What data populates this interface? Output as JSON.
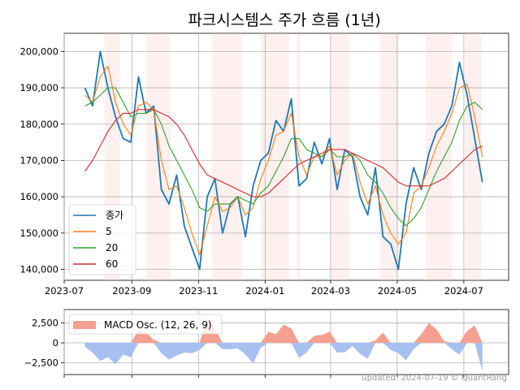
{
  "chart_data": [
    {
      "type": "line",
      "title": "파크시스템스 주가 흐름 (1년)",
      "xlabel": "",
      "ylabel": "",
      "ylim": [
        137000,
        205000
      ],
      "x_ticks": [
        "2023-07",
        "2023-09",
        "2023-11",
        "2024-01",
        "2024-03",
        "2024-05",
        "2024-07"
      ],
      "y_ticks": [
        "140,000",
        "150,000",
        "160,000",
        "170,000",
        "180,000",
        "190,000",
        "200,000"
      ],
      "y_tick_values": [
        140000,
        150000,
        160000,
        170000,
        180000,
        190000,
        200000
      ],
      "grid": true,
      "legend_position": "lower-left",
      "x": [
        "2023-07-20",
        "2023-07-27",
        "2023-08-03",
        "2023-08-10",
        "2023-08-17",
        "2023-08-24",
        "2023-08-31",
        "2023-09-07",
        "2023-09-14",
        "2023-09-21",
        "2023-09-28",
        "2023-10-05",
        "2023-10-12",
        "2023-10-19",
        "2023-10-26",
        "2023-11-02",
        "2023-11-09",
        "2023-11-16",
        "2023-11-23",
        "2023-11-30",
        "2023-12-07",
        "2023-12-14",
        "2023-12-21",
        "2023-12-28",
        "2024-01-04",
        "2024-01-11",
        "2024-01-18",
        "2024-01-25",
        "2024-02-01",
        "2024-02-08",
        "2024-02-15",
        "2024-02-22",
        "2024-02-29",
        "2024-03-07",
        "2024-03-14",
        "2024-03-21",
        "2024-03-28",
        "2024-04-04",
        "2024-04-11",
        "2024-04-18",
        "2024-04-25",
        "2024-05-02",
        "2024-05-09",
        "2024-05-16",
        "2024-05-23",
        "2024-05-30",
        "2024-06-06",
        "2024-06-13",
        "2024-06-20",
        "2024-06-27",
        "2024-07-04",
        "2024-07-11",
        "2024-07-18"
      ],
      "series": [
        {
          "name": "종가",
          "color": "#1f77b4",
          "values": [
            190000,
            185000,
            200000,
            190000,
            182000,
            176000,
            175000,
            193000,
            183000,
            185000,
            162000,
            158000,
            166000,
            152000,
            146000,
            140000,
            160000,
            165000,
            150000,
            158000,
            160000,
            149000,
            163000,
            170000,
            172000,
            181000,
            178000,
            187000,
            163000,
            165000,
            175000,
            169000,
            176000,
            162000,
            173000,
            171000,
            160000,
            155000,
            168000,
            149000,
            147000,
            140000,
            158000,
            168000,
            162000,
            172000,
            178000,
            180000,
            185000,
            197000,
            188000,
            176000,
            164000
          ]
        },
        {
          "name": "5",
          "color": "#ff7f0e",
          "values": [
            188000,
            186000,
            193000,
            196000,
            186000,
            180000,
            177000,
            185000,
            186000,
            184000,
            170000,
            162000,
            163000,
            157000,
            150000,
            144000,
            152000,
            160000,
            156000,
            157000,
            160000,
            155000,
            157000,
            165000,
            170000,
            177000,
            178000,
            183000,
            171000,
            166000,
            171000,
            171000,
            174000,
            166000,
            170000,
            172000,
            164000,
            158000,
            163000,
            155000,
            150000,
            147000,
            150000,
            161000,
            163000,
            168000,
            174000,
            178000,
            183000,
            190000,
            191000,
            182000,
            171000
          ]
        },
        {
          "name": "20",
          "color": "#2ca02c",
          "values": [
            185000,
            186000,
            188000,
            190000,
            190000,
            186000,
            182000,
            183000,
            183000,
            184000,
            180000,
            174000,
            170000,
            166000,
            162000,
            157000,
            156000,
            158000,
            158000,
            158000,
            160000,
            159000,
            158000,
            161000,
            163000,
            167000,
            171000,
            176000,
            176000,
            173000,
            172000,
            171000,
            173000,
            171000,
            171000,
            172000,
            170000,
            166000,
            164000,
            161000,
            157000,
            154000,
            152000,
            154000,
            157000,
            162000,
            167000,
            171000,
            175000,
            181000,
            185000,
            186000,
            184000
          ]
        },
        {
          "name": "60",
          "color": "#d62728",
          "values": [
            167000,
            170000,
            174000,
            178000,
            181000,
            183000,
            183000,
            184000,
            184000,
            184000,
            183000,
            182000,
            180000,
            177000,
            173000,
            169000,
            166000,
            165000,
            164000,
            163000,
            162000,
            161000,
            160000,
            160000,
            161000,
            163000,
            165000,
            167000,
            169000,
            170000,
            171000,
            172000,
            173000,
            173000,
            173000,
            172000,
            171000,
            170000,
            169000,
            168000,
            166000,
            164000,
            163000,
            163000,
            163000,
            163000,
            164000,
            165000,
            167000,
            169000,
            171000,
            173000,
            174000
          ]
        }
      ],
      "shaded_periods": [
        [
          "2023-08-07",
          "2023-08-21"
        ],
        [
          "2023-09-14",
          "2023-10-06"
        ],
        [
          "2023-11-13",
          "2023-12-11"
        ],
        [
          "2023-12-28",
          "2024-01-23"
        ],
        [
          "2024-01-30",
          "2024-02-02"
        ],
        [
          "2024-03-01",
          "2024-03-18"
        ],
        [
          "2024-04-15",
          "2024-05-02"
        ],
        [
          "2024-05-27",
          "2024-06-20"
        ],
        [
          "2024-07-02",
          "2024-07-17"
        ]
      ],
      "shade_color": "#ffcccc"
    },
    {
      "type": "area",
      "ylim": [
        -4000,
        4200
      ],
      "y_ticks": [
        "2,500",
        "0",
        "−2,500"
      ],
      "y_tick_values": [
        2500,
        0,
        -2500
      ],
      "legend": "MACD Osc. (12, 26, 9)",
      "positive_color": "#f4a090",
      "negative_color": "#a8c0f0",
      "x": [
        "2023-07-20",
        "2023-07-27",
        "2023-08-03",
        "2023-08-10",
        "2023-08-17",
        "2023-08-24",
        "2023-08-31",
        "2023-09-07",
        "2023-09-14",
        "2023-09-21",
        "2023-09-28",
        "2023-10-05",
        "2023-10-12",
        "2023-10-19",
        "2023-10-26",
        "2023-11-02",
        "2023-11-09",
        "2023-11-16",
        "2023-11-23",
        "2023-11-30",
        "2023-12-07",
        "2023-12-14",
        "2023-12-21",
        "2023-12-28",
        "2024-01-04",
        "2024-01-11",
        "2024-01-18",
        "2024-01-25",
        "2024-02-01",
        "2024-02-08",
        "2024-02-15",
        "2024-02-22",
        "2024-02-29",
        "2024-03-07",
        "2024-03-14",
        "2024-03-21",
        "2024-03-28",
        "2024-04-04",
        "2024-04-11",
        "2024-04-18",
        "2024-04-25",
        "2024-05-02",
        "2024-05-09",
        "2024-05-16",
        "2024-05-23",
        "2024-05-30",
        "2024-06-06",
        "2024-06-13",
        "2024-06-20",
        "2024-06-27",
        "2024-07-04",
        "2024-07-11",
        "2024-07-18"
      ],
      "values": [
        -500,
        -1200,
        -2300,
        -1800,
        -2700,
        -1500,
        -1800,
        1600,
        1300,
        400,
        -1300,
        -2100,
        -1600,
        -1200,
        -1300,
        -900,
        3200,
        1800,
        -800,
        -800,
        -700,
        -1500,
        -2600,
        -600,
        1400,
        1100,
        2300,
        1800,
        -1900,
        -1200,
        900,
        1000,
        1400,
        -1200,
        -1200,
        -400,
        -1400,
        -2000,
        300,
        1300,
        -900,
        -1300,
        -2200,
        -800,
        1100,
        2500,
        1700,
        200,
        -800,
        -1500,
        1500,
        2200,
        -3600
      ]
    }
  ],
  "footer": "updated: 2024-07-19 © QuantRang"
}
